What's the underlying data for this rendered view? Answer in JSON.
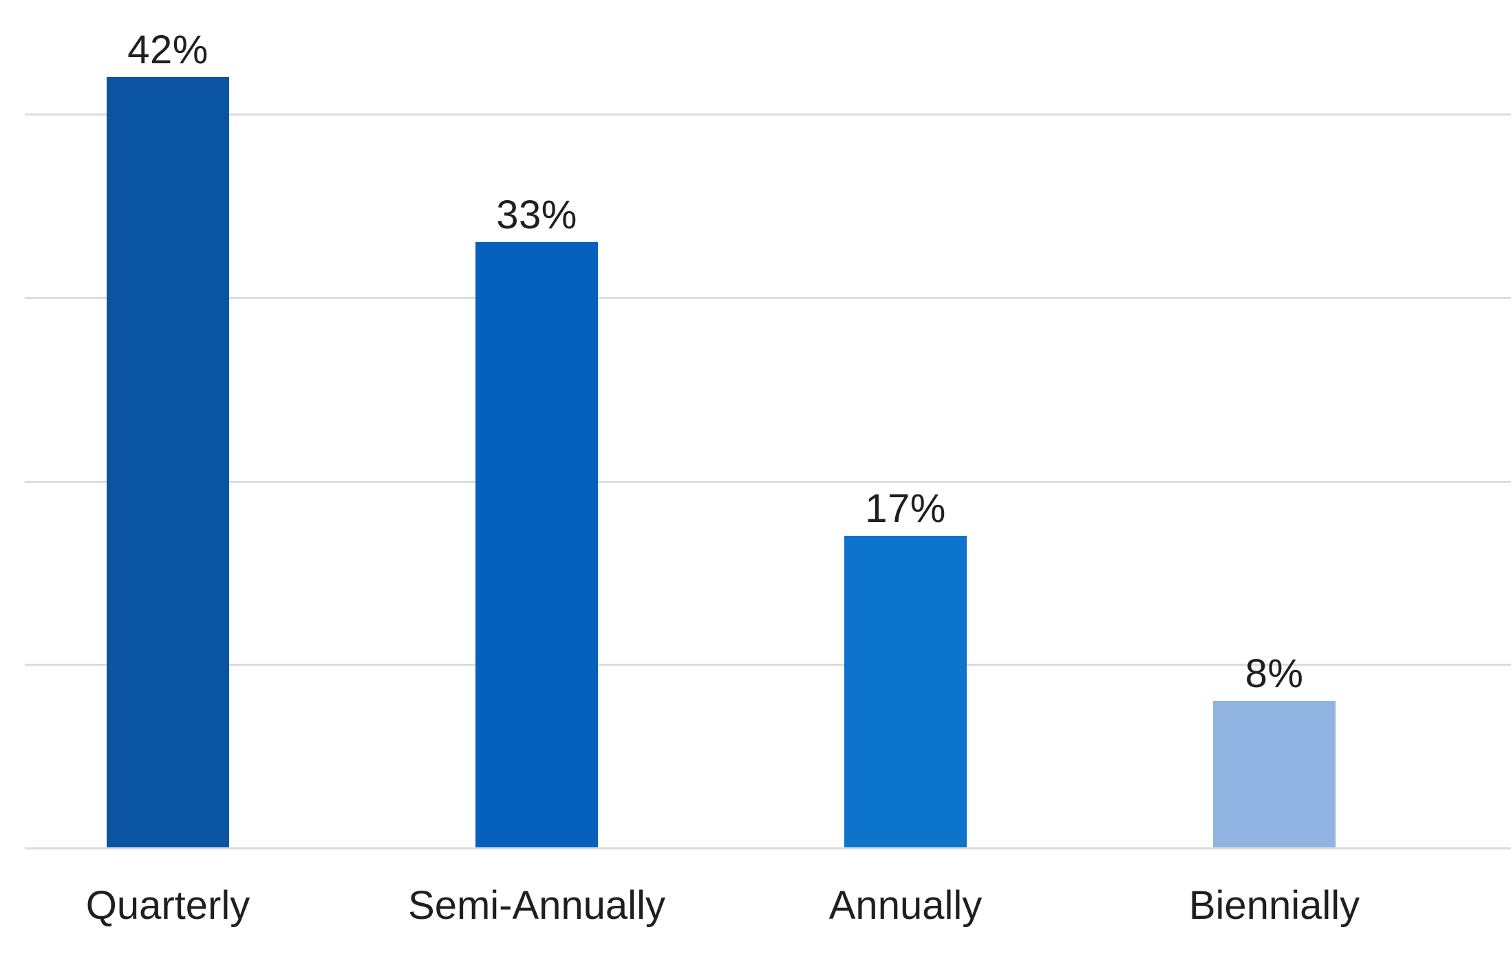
{
  "chart_data": {
    "type": "bar",
    "title": "",
    "xlabel": "",
    "ylabel": "",
    "categories": [
      "Quarterly",
      "Semi-Annually",
      "Annually",
      "Biennially"
    ],
    "values": [
      42,
      33,
      17,
      8
    ],
    "value_labels": [
      "42%",
      "33%",
      "17%",
      "8%"
    ],
    "bar_colors": [
      "#0a54a1",
      "#0561bd",
      "#0d74cb",
      "#90b3e1"
    ],
    "ylim": [
      0,
      46
    ],
    "grid": "horizontal",
    "gridline_max_pct": 40,
    "gridline_step_pct": 10,
    "gridline_color": "#dcdcdc",
    "label_color": "#1f1f1f",
    "background_color": "#ffffff",
    "legend": "none",
    "y_axis_tick_labels_visible": false
  }
}
